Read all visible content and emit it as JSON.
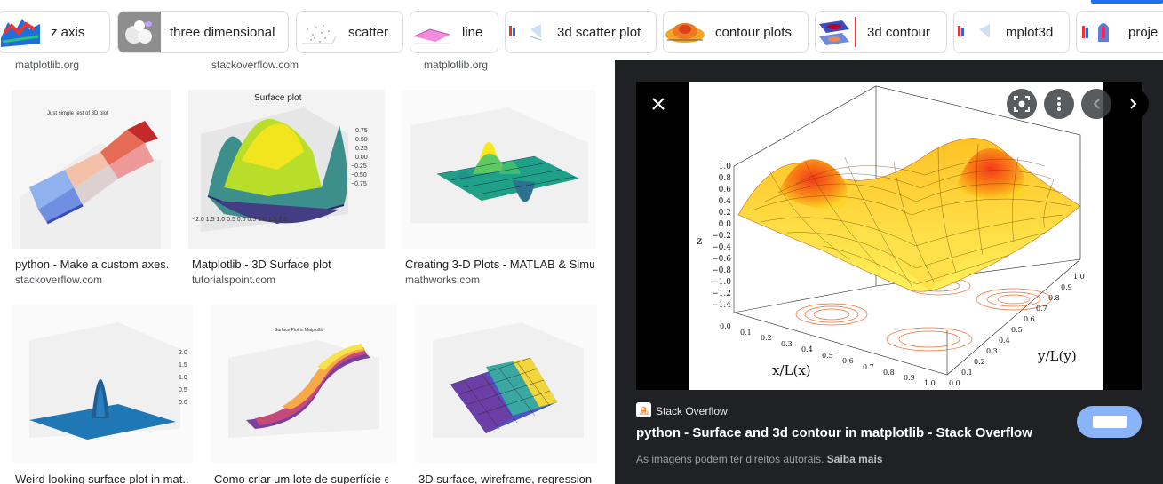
{
  "chips": [
    {
      "label": "z axis",
      "icon": "surface-thumbnail"
    },
    {
      "label": "three dimensional",
      "icon": "3d-render-thumbnail"
    },
    {
      "label": "scatter",
      "icon": "scatter-thumbnail"
    },
    {
      "label": "line",
      "icon": "line-plot-thumbnail"
    },
    {
      "label": "3d scatter plot",
      "icon": "scatter-3d-thumbnail"
    },
    {
      "label": "contour plots",
      "icon": "contour-thumbnail"
    },
    {
      "label": "3d contour",
      "icon": "contour-3d-thumbnail"
    },
    {
      "label": "mplot3d",
      "icon": "mplot3d-thumbnail"
    },
    {
      "label": "proje",
      "icon": "projection-thumbnail"
    }
  ],
  "top_sources": [
    "matplotlib.org",
    "stackoverflow.com",
    "matplotlib.org"
  ],
  "results": [
    {
      "title": "python - Make a custom axes...",
      "source": "stackoverflow.com",
      "img_caption": "Just simple test of 3D plot"
    },
    {
      "title": "Matplotlib - 3D Surface plot",
      "source": "tutorialspoint.com",
      "img_caption": "Surface plot"
    },
    {
      "title": "Creating 3-D Plots - MATLAB & Simul...",
      "source": "mathworks.com",
      "img_caption": ""
    },
    {
      "title": "Weird looking surface plot in mat...",
      "source": "",
      "img_caption": ""
    },
    {
      "title": "Como criar um lote de superfície e...",
      "source": "",
      "img_caption": "Surface Plot in Matplotlib"
    },
    {
      "title": "3D surface, wireframe, regression ...",
      "source": "",
      "img_caption": ""
    }
  ],
  "preview": {
    "site": "Stack Overflow",
    "title": "python - Surface and 3d contour in matplotlib - Stack Overflow",
    "copyright": "As imagens podem ter direitos autorais.",
    "learn_more": "Saiba mais",
    "xlabel": "x/L(x)",
    "ylabel": "y/L(y)",
    "zlabel": "z",
    "z_ticks": [
      "1.0",
      "0.8",
      "0.6",
      "0.4",
      "0.2",
      "0.0",
      "−0.2",
      "−0.4",
      "−0.6",
      "−0.8",
      "−1.0",
      "−1.2",
      "−1.4"
    ],
    "x_ticks": [
      "0.0",
      "0.1",
      "0.2",
      "0.3",
      "0.4",
      "0.5",
      "0.6",
      "0.7",
      "0.8",
      "0.9",
      "1.0"
    ],
    "y_ticks": [
      "0.0",
      "0.1",
      "0.2",
      "0.3",
      "0.4",
      "0.5",
      "0.6",
      "0.7",
      "0.8",
      "0.9",
      "1.0"
    ]
  },
  "colors": {
    "accent": "#1a73e8",
    "panel": "#202124",
    "visit": "#8ab4f8"
  }
}
